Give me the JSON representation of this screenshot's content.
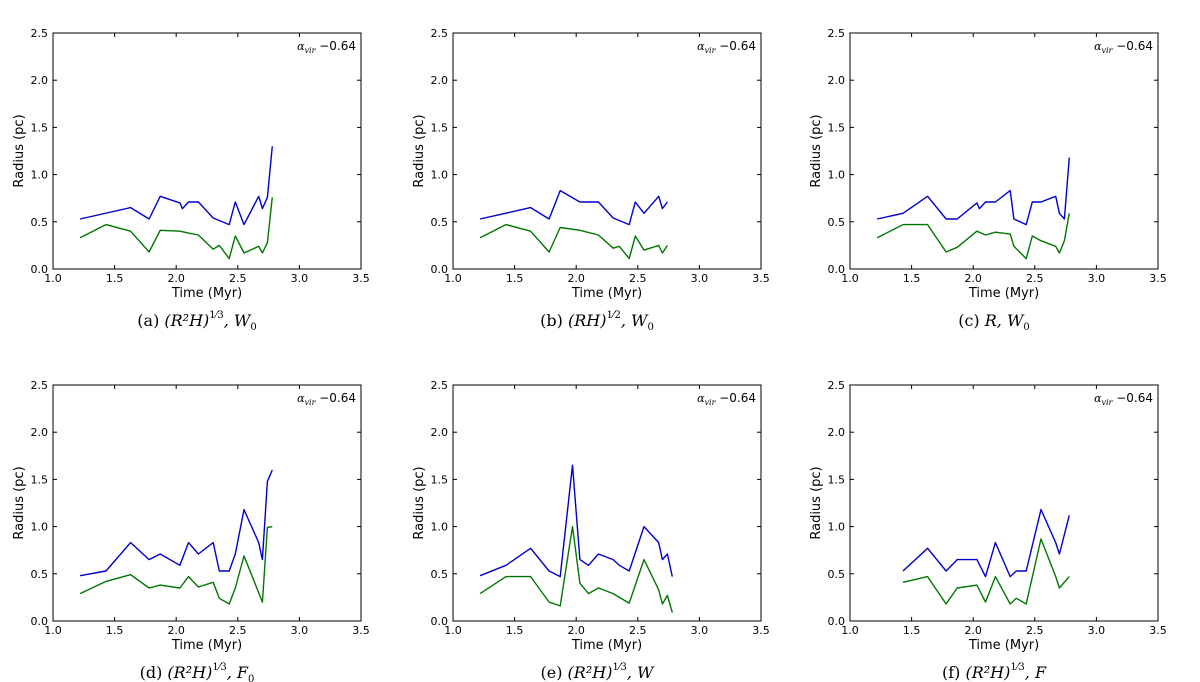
{
  "common": {
    "xlabel": "Time (Myr)",
    "ylabel": "Radius (pc)",
    "xlim": [
      1.0,
      3.5
    ],
    "ylim": [
      0.0,
      2.5
    ],
    "xticks": [
      "1.0",
      "1.5",
      "2.0",
      "2.5",
      "3.0",
      "3.5"
    ],
    "yticks": [
      "0.0",
      "0.5",
      "1.0",
      "1.5",
      "2.0",
      "2.5"
    ],
    "series_colors": [
      "#0000cc",
      "#007700"
    ],
    "annotation": {
      "symbol": "α",
      "subscript": "vir",
      "value": "−0.64"
    }
  },
  "chart_data": [
    {
      "type": "line",
      "caption": {
        "prefix": "(a)",
        "expr": "(R²H)",
        "exp_num": "1",
        "exp_den": "3",
        "suffix": ", W",
        "suffix_sub": "0"
      },
      "series": [
        {
          "color": "#0000cc",
          "x": [
            1.22,
            1.63,
            1.78,
            1.87,
            2.03,
            2.05,
            2.1,
            2.18,
            2.3,
            2.43,
            2.48,
            2.55,
            2.67,
            2.7,
            2.74,
            2.78
          ],
          "y": [
            0.53,
            0.65,
            0.53,
            0.77,
            0.7,
            0.64,
            0.71,
            0.71,
            0.54,
            0.47,
            0.71,
            0.47,
            0.77,
            0.64,
            0.76,
            1.3
          ]
        },
        {
          "color": "#007700",
          "x": [
            1.22,
            1.43,
            1.63,
            1.78,
            1.87,
            2.03,
            2.1,
            2.18,
            2.3,
            2.35,
            2.43,
            2.48,
            2.55,
            2.67,
            2.7,
            2.74,
            2.78
          ],
          "y": [
            0.33,
            0.47,
            0.4,
            0.18,
            0.41,
            0.4,
            0.38,
            0.36,
            0.21,
            0.25,
            0.11,
            0.35,
            0.17,
            0.24,
            0.17,
            0.28,
            0.76
          ]
        }
      ]
    },
    {
      "type": "line",
      "caption": {
        "prefix": "(b)",
        "expr": "(RH)",
        "exp_num": "1",
        "exp_den": "2",
        "suffix": ", W",
        "suffix_sub": "0"
      },
      "series": [
        {
          "color": "#0000cc",
          "x": [
            1.22,
            1.63,
            1.78,
            1.87,
            2.03,
            2.18,
            2.3,
            2.43,
            2.48,
            2.55,
            2.67,
            2.7,
            2.74
          ],
          "y": [
            0.53,
            0.65,
            0.53,
            0.83,
            0.71,
            0.71,
            0.54,
            0.47,
            0.71,
            0.59,
            0.77,
            0.64,
            0.71
          ]
        },
        {
          "color": "#007700",
          "x": [
            1.22,
            1.43,
            1.63,
            1.78,
            1.87,
            2.03,
            2.18,
            2.3,
            2.35,
            2.43,
            2.48,
            2.55,
            2.67,
            2.7,
            2.74
          ],
          "y": [
            0.33,
            0.47,
            0.4,
            0.18,
            0.44,
            0.41,
            0.36,
            0.22,
            0.24,
            0.11,
            0.35,
            0.2,
            0.25,
            0.17,
            0.25
          ]
        }
      ]
    },
    {
      "type": "line",
      "caption": {
        "prefix": "(c)",
        "expr": "R",
        "exp_num": "",
        "exp_den": "",
        "suffix": ", W",
        "suffix_sub": "0"
      },
      "series": [
        {
          "color": "#0000cc",
          "x": [
            1.22,
            1.43,
            1.63,
            1.78,
            1.87,
            2.03,
            2.05,
            2.1,
            2.18,
            2.3,
            2.33,
            2.43,
            2.48,
            2.55,
            2.67,
            2.7,
            2.74,
            2.78
          ],
          "y": [
            0.53,
            0.59,
            0.77,
            0.53,
            0.53,
            0.7,
            0.64,
            0.71,
            0.71,
            0.83,
            0.53,
            0.47,
            0.71,
            0.71,
            0.77,
            0.59,
            0.53,
            1.18
          ]
        },
        {
          "color": "#007700",
          "x": [
            1.22,
            1.43,
            1.63,
            1.78,
            1.87,
            2.03,
            2.1,
            2.18,
            2.3,
            2.33,
            2.43,
            2.48,
            2.55,
            2.67,
            2.7,
            2.74,
            2.78
          ],
          "y": [
            0.33,
            0.47,
            0.47,
            0.18,
            0.23,
            0.4,
            0.36,
            0.39,
            0.37,
            0.24,
            0.11,
            0.35,
            0.3,
            0.24,
            0.17,
            0.3,
            0.59
          ]
        }
      ]
    },
    {
      "type": "line",
      "caption": {
        "prefix": "(d)",
        "expr": "(R²H)",
        "exp_num": "1",
        "exp_den": "3",
        "suffix": ", F",
        "suffix_sub": "0"
      },
      "series": [
        {
          "color": "#0000cc",
          "x": [
            1.22,
            1.43,
            1.63,
            1.78,
            1.87,
            2.03,
            2.1,
            2.18,
            2.3,
            2.35,
            2.43,
            2.48,
            2.55,
            2.67,
            2.7,
            2.74,
            2.78
          ],
          "y": [
            0.48,
            0.53,
            0.83,
            0.65,
            0.71,
            0.59,
            0.83,
            0.71,
            0.83,
            0.53,
            0.53,
            0.71,
            1.18,
            0.83,
            0.65,
            1.48,
            1.6
          ]
        },
        {
          "color": "#007700",
          "x": [
            1.22,
            1.43,
            1.63,
            1.78,
            1.87,
            2.03,
            2.1,
            2.18,
            2.3,
            2.35,
            2.43,
            2.48,
            2.55,
            2.67,
            2.7,
            2.74,
            2.78
          ],
          "y": [
            0.29,
            0.42,
            0.49,
            0.35,
            0.38,
            0.35,
            0.47,
            0.36,
            0.41,
            0.24,
            0.18,
            0.35,
            0.69,
            0.3,
            0.2,
            0.99,
            1.0
          ]
        }
      ]
    },
    {
      "type": "line",
      "caption": {
        "prefix": "(e)",
        "expr": "(R²H)",
        "exp_num": "1",
        "exp_den": "3",
        "suffix": ", W",
        "suffix_sub": ""
      },
      "series": [
        {
          "color": "#0000cc",
          "x": [
            1.22,
            1.43,
            1.63,
            1.78,
            1.87,
            1.97,
            2.03,
            2.1,
            2.18,
            2.3,
            2.35,
            2.43,
            2.55,
            2.67,
            2.7,
            2.74,
            2.78
          ],
          "y": [
            0.48,
            0.59,
            0.77,
            0.53,
            0.47,
            1.65,
            0.65,
            0.59,
            0.71,
            0.65,
            0.59,
            0.53,
            1.0,
            0.83,
            0.65,
            0.71,
            0.47
          ]
        },
        {
          "color": "#007700",
          "x": [
            1.22,
            1.43,
            1.63,
            1.78,
            1.87,
            1.97,
            2.03,
            2.1,
            2.18,
            2.3,
            2.35,
            2.43,
            2.55,
            2.67,
            2.7,
            2.74,
            2.78
          ],
          "y": [
            0.29,
            0.47,
            0.47,
            0.2,
            0.16,
            1.0,
            0.4,
            0.29,
            0.35,
            0.29,
            0.25,
            0.19,
            0.65,
            0.33,
            0.18,
            0.27,
            0.09
          ]
        }
      ]
    },
    {
      "type": "line",
      "caption": {
        "prefix": "(f)",
        "expr": "(R²H)",
        "exp_num": "1",
        "exp_den": "3",
        "suffix": ", F",
        "suffix_sub": ""
      },
      "series": [
        {
          "color": "#0000cc",
          "x": [
            1.43,
            1.63,
            1.78,
            1.87,
            2.03,
            2.1,
            2.18,
            2.3,
            2.35,
            2.43,
            2.55,
            2.67,
            2.7,
            2.78
          ],
          "y": [
            0.53,
            0.77,
            0.53,
            0.65,
            0.65,
            0.47,
            0.83,
            0.47,
            0.53,
            0.53,
            1.18,
            0.83,
            0.71,
            1.12
          ]
        },
        {
          "color": "#007700",
          "x": [
            1.43,
            1.63,
            1.78,
            1.87,
            2.03,
            2.1,
            2.18,
            2.3,
            2.35,
            2.43,
            2.55,
            2.67,
            2.7,
            2.78
          ],
          "y": [
            0.41,
            0.47,
            0.18,
            0.35,
            0.38,
            0.2,
            0.47,
            0.18,
            0.24,
            0.18,
            0.87,
            0.47,
            0.35,
            0.47
          ]
        }
      ]
    }
  ]
}
